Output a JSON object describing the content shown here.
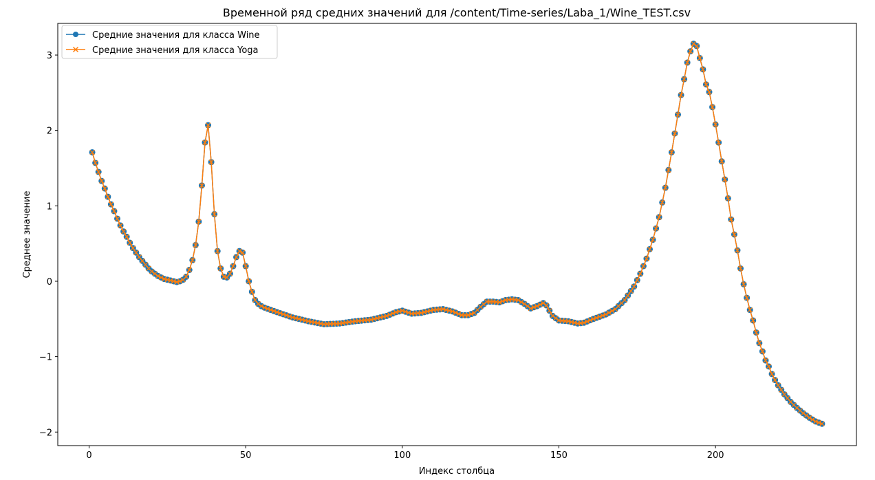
{
  "corner_glyph": "⟳",
  "chart_data": {
    "type": "line",
    "title": "Временной ряд средних значений для /content/Time-series/Laba_1/Wine_TEST.csv",
    "xlabel": "Индекс столбца",
    "ylabel": "Среднее значение",
    "xlim": [
      -10,
      245
    ],
    "ylim": [
      -2.18,
      3.42
    ],
    "xticks": [
      0,
      50,
      100,
      150,
      200
    ],
    "yticks": [
      -2,
      -1,
      0,
      1,
      2,
      3
    ],
    "grid": false,
    "legend_position": "top-left",
    "anchors": [
      [
        1,
        1.71
      ],
      [
        2,
        1.57
      ],
      [
        3,
        1.45
      ],
      [
        4,
        1.33
      ],
      [
        5,
        1.23
      ],
      [
        6,
        1.12
      ],
      [
        7,
        1.02
      ],
      [
        8,
        0.93
      ],
      [
        9,
        0.83
      ],
      [
        10,
        0.74
      ],
      [
        11,
        0.66
      ],
      [
        12,
        0.59
      ],
      [
        13,
        0.51
      ],
      [
        14,
        0.44
      ],
      [
        15,
        0.38
      ],
      [
        16,
        0.32
      ],
      [
        17,
        0.27
      ],
      [
        18,
        0.22
      ],
      [
        19,
        0.17
      ],
      [
        20,
        0.13
      ],
      [
        21,
        0.1
      ],
      [
        22,
        0.07
      ],
      [
        23,
        0.05
      ],
      [
        24,
        0.03
      ],
      [
        25,
        0.02
      ],
      [
        26,
        0.01
      ],
      [
        27,
        0.0
      ],
      [
        28,
        -0.01
      ],
      [
        29,
        0.0
      ],
      [
        30,
        0.02
      ],
      [
        31,
        0.06
      ],
      [
        32,
        0.15
      ],
      [
        33,
        0.28
      ],
      [
        34,
        0.48
      ],
      [
        35,
        0.79
      ],
      [
        36,
        1.27
      ],
      [
        37,
        1.84
      ],
      [
        38,
        2.07
      ],
      [
        39,
        1.58
      ],
      [
        40,
        0.89
      ],
      [
        41,
        0.4
      ],
      [
        42,
        0.17
      ],
      [
        43,
        0.06
      ],
      [
        44,
        0.05
      ],
      [
        45,
        0.1
      ],
      [
        46,
        0.2
      ],
      [
        47,
        0.32
      ],
      [
        48,
        0.4
      ],
      [
        49,
        0.38
      ],
      [
        50,
        0.2
      ],
      [
        51,
        0.0
      ],
      [
        52,
        -0.14
      ],
      [
        53,
        -0.25
      ],
      [
        54,
        -0.3
      ],
      [
        55,
        -0.33
      ],
      [
        56,
        -0.35
      ],
      [
        60,
        -0.41
      ],
      [
        65,
        -0.48
      ],
      [
        70,
        -0.53
      ],
      [
        75,
        -0.57
      ],
      [
        80,
        -0.56
      ],
      [
        85,
        -0.53
      ],
      [
        90,
        -0.51
      ],
      [
        95,
        -0.46
      ],
      [
        98,
        -0.41
      ],
      [
        100,
        -0.39
      ],
      [
        103,
        -0.43
      ],
      [
        106,
        -0.42
      ],
      [
        110,
        -0.38
      ],
      [
        113,
        -0.37
      ],
      [
        116,
        -0.4
      ],
      [
        119,
        -0.45
      ],
      [
        121,
        -0.45
      ],
      [
        123,
        -0.42
      ],
      [
        125,
        -0.34
      ],
      [
        127,
        -0.27
      ],
      [
        129,
        -0.27
      ],
      [
        131,
        -0.28
      ],
      [
        133,
        -0.25
      ],
      [
        135,
        -0.24
      ],
      [
        137,
        -0.25
      ],
      [
        139,
        -0.3
      ],
      [
        141,
        -0.36
      ],
      [
        143,
        -0.33
      ],
      [
        145,
        -0.29
      ],
      [
        146,
        -0.32
      ],
      [
        148,
        -0.46
      ],
      [
        150,
        -0.52
      ],
      [
        153,
        -0.53
      ],
      [
        156,
        -0.56
      ],
      [
        158,
        -0.55
      ],
      [
        161,
        -0.5
      ],
      [
        165,
        -0.44
      ],
      [
        168,
        -0.37
      ],
      [
        171,
        -0.25
      ],
      [
        174,
        -0.07
      ],
      [
        176,
        0.1
      ],
      [
        178,
        0.3
      ],
      [
        180,
        0.55
      ],
      [
        182,
        0.85
      ],
      [
        184,
        1.24
      ],
      [
        186,
        1.71
      ],
      [
        188,
        2.21
      ],
      [
        189,
        2.47
      ],
      [
        190,
        2.68
      ],
      [
        191,
        2.9
      ],
      [
        192,
        3.05
      ],
      [
        193,
        3.15
      ],
      [
        194,
        3.12
      ],
      [
        195,
        2.96
      ],
      [
        196,
        2.81
      ],
      [
        197,
        2.61
      ],
      [
        198,
        2.51
      ],
      [
        199,
        2.31
      ],
      [
        200,
        2.08
      ],
      [
        201,
        1.84
      ],
      [
        202,
        1.59
      ],
      [
        203,
        1.35
      ],
      [
        204,
        1.1
      ],
      [
        205,
        0.82
      ],
      [
        206,
        0.62
      ],
      [
        207,
        0.41
      ],
      [
        208,
        0.17
      ],
      [
        209,
        -0.04
      ],
      [
        210,
        -0.22
      ],
      [
        211,
        -0.38
      ],
      [
        212,
        -0.52
      ],
      [
        213,
        -0.68
      ],
      [
        214,
        -0.82
      ],
      [
        215,
        -0.93
      ],
      [
        216,
        -1.05
      ],
      [
        217,
        -1.13
      ],
      [
        218,
        -1.23
      ],
      [
        219,
        -1.31
      ],
      [
        220,
        -1.38
      ],
      [
        222,
        -1.5
      ],
      [
        224,
        -1.6
      ],
      [
        226,
        -1.68
      ],
      [
        228,
        -1.75
      ],
      [
        230,
        -1.81
      ],
      [
        232,
        -1.86
      ],
      [
        234,
        -1.89
      ]
    ],
    "series": [
      {
        "name": "Средние значения для класса Wine",
        "color": "#1f77b4",
        "marker": "circle"
      },
      {
        "name": "Средние значения для класса Yoga",
        "color": "#ff7f0e",
        "marker": "x"
      }
    ]
  }
}
